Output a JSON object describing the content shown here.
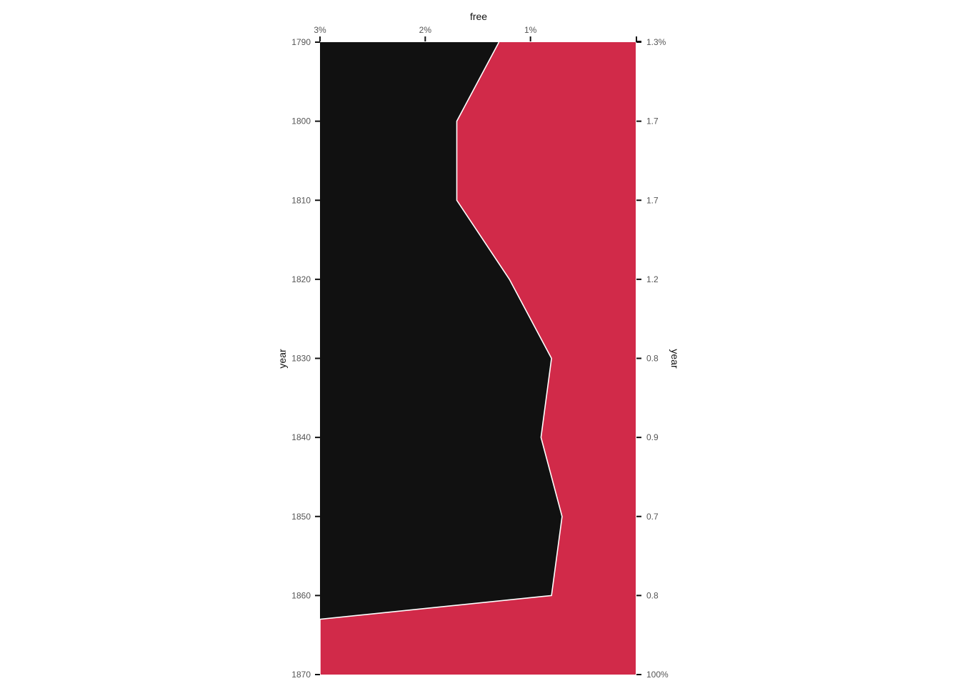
{
  "chart_data": {
    "type": "area",
    "orientation": "vertical",
    "title": "",
    "top_axis_label": "free",
    "left_axis_label": "year",
    "right_axis_label": "year",
    "years": [
      1790,
      1800,
      1810,
      1820,
      1830,
      1840,
      1850,
      1860,
      1870
    ],
    "year_tick_labels": [
      "1790",
      "1800",
      "1810",
      "1820",
      "1830",
      "1840",
      "1850",
      "1860",
      "1870"
    ],
    "free_share_tick_labels": [
      "3%",
      "2%",
      "1%"
    ],
    "free_share_ticks": [
      3,
      2,
      1
    ],
    "right_tick_labels": [
      "1.3%",
      "1.7",
      "1.7",
      "1.2",
      "0.8",
      "0.9",
      "0.7",
      "0.8",
      "100%"
    ],
    "series": [
      {
        "name": "",
        "color": "#111111"
      },
      {
        "name": "",
        "color": "#d12a49"
      }
    ],
    "boundary_percent": [
      {
        "year": 1790,
        "value": 1.3
      },
      {
        "year": 1800,
        "value": 1.7
      },
      {
        "year": 1810,
        "value": 1.7
      },
      {
        "year": 1820,
        "value": 1.2
      },
      {
        "year": 1830,
        "value": 0.8
      },
      {
        "year": 1840,
        "value": 0.9
      },
      {
        "year": 1850,
        "value": 0.7
      },
      {
        "year": 1860,
        "value": 0.8
      },
      {
        "year": 1863,
        "value": 3.0
      },
      {
        "year": 1870,
        "value": 3.0
      }
    ],
    "xlim": [
      3,
      0
    ],
    "ylim": [
      1790,
      1870
    ],
    "grid": false,
    "legend": "none"
  }
}
